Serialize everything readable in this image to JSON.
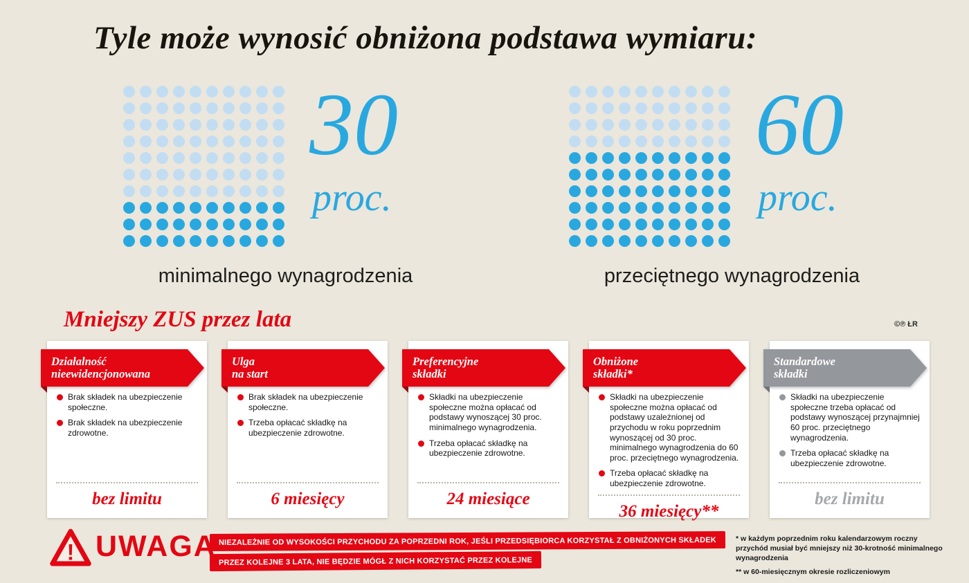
{
  "page": {
    "title": "Tyle może wynosić obniżona podstawa wymiaru:",
    "section_title": "Mniejszy ZUS przez lata",
    "credit": "©℗ ŁR",
    "background": "#ebe7dc",
    "accent_red": "#e30613",
    "accent_blue": "#29a8e0"
  },
  "chart_data": [
    {
      "type": "waffle",
      "value": 30,
      "value_label": "30",
      "unit_label": "proc.",
      "caption": "minimalnego wynagrodzenia",
      "grid": {
        "rows": 10,
        "cols": 10
      },
      "filled_rows_from_bottom": 3,
      "filled_dots": 30,
      "total_dots": 100,
      "colors": {
        "filled": "#29a8e0",
        "empty": "#c2ddf2"
      }
    },
    {
      "type": "waffle",
      "value": 60,
      "value_label": "60",
      "unit_label": "proc.",
      "caption": "przeciętnego wynagrodzenia",
      "grid": {
        "rows": 10,
        "cols": 10
      },
      "filled_rows_from_bottom": 6,
      "filled_dots": 60,
      "total_dots": 100,
      "colors": {
        "filled": "#29a8e0",
        "empty": "#c2ddf2"
      }
    }
  ],
  "cards": [
    {
      "title": "Działalność\nnieewidencjonowana",
      "theme": "red",
      "bullets": [
        "Brak składek na ubezpieczenie społeczne.",
        "Brak składek na ubezpieczenie zdrowotne."
      ],
      "duration": "bez limitu"
    },
    {
      "title": "Ulga\nna start",
      "theme": "red",
      "bullets": [
        "Brak składek na ubezpieczenie społeczne.",
        "Trzeba opłacać składkę na ubezpieczenie zdrowotne."
      ],
      "duration": "6 miesięcy"
    },
    {
      "title": "Preferencyjne\nskładki",
      "theme": "red",
      "bullets": [
        "Składki na ubezpieczenie społeczne można opłacać od podstawy wynoszącej 30 proc. minimalnego wynagrodzenia.",
        "Trzeba opłacać składkę na ubezpieczenie zdrowotne."
      ],
      "duration": "24 miesiące"
    },
    {
      "title": "Obniżone\nskładki*",
      "theme": "red",
      "bullets": [
        "Składki na ubezpieczenie społeczne można opłacać od podstawy uzależnionej od przychodu w roku poprzednim wynoszącej od 30 proc. minimalnego wynagrodzenia do 60 proc. przeciętnego wynagrodzenia.",
        "Trzeba opłacać składkę na ubezpieczenie zdrowotne."
      ],
      "duration": "36 miesięcy**"
    },
    {
      "title": "Standardowe\nskładki",
      "theme": "gray",
      "bullets": [
        "Składki na ubezpieczenie społeczne trzeba opłacać od podstawy wynoszącej przynajmniej 60 proc. przeciętnego wynagrodzenia.",
        "Trzeba opłacać składkę na ubezpieczenie zdrowotne."
      ],
      "duration": "bez limitu"
    }
  ],
  "warning": {
    "icon_glyph": "!",
    "label": "UWAGA",
    "line1": "NIEZALEŻNIE OD WYSOKOŚCI PRZYCHODU ZA POPRZEDNI ROK, JEŚLI PRZEDSIĘBIORCA KORZYSTAŁ Z OBNIŻONYCH SKŁADEK",
    "line2": "PRZEZ KOLEJNE 3 LATA, NIE BĘDZIE MÓGŁ Z NICH KORZYSTAĆ PRZEZ KOLEJNE"
  },
  "footnotes": [
    "* w każdym poprzednim roku kalendarzowym roczny przychód musiał być mniejszy niż 30-krotność minimalnego wynagrodzenia",
    "** w 60-miesięcznym okresie rozliczeniowym"
  ]
}
